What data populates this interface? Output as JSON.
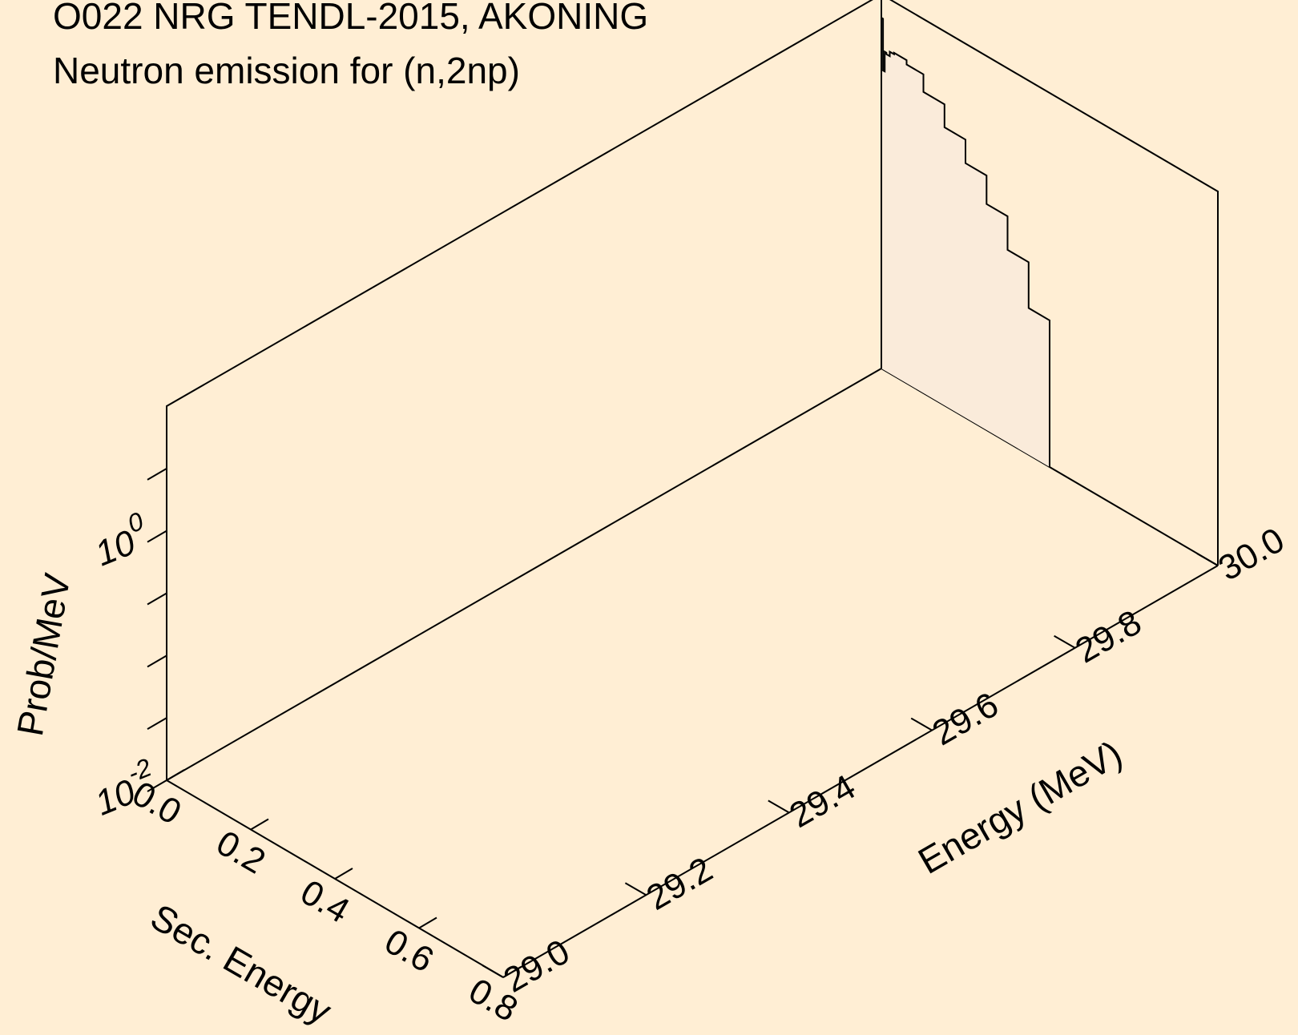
{
  "chart_data": {
    "type": "3d-surface",
    "title": [
      "O022 NRG TENDL-2015, AKONING",
      "Neutron emission for (n,2np)"
    ],
    "axes": {
      "x": {
        "label": "Sec. Energy",
        "range": [
          0.0,
          0.8
        ],
        "ticks": [
          "0.0",
          "0.2",
          "0.4",
          "0.6",
          "0.8"
        ]
      },
      "y": {
        "label": "Energy (MeV)",
        "range": [
          29.0,
          30.0
        ],
        "ticks": [
          "29.0",
          "29.2",
          "29.4",
          "29.6",
          "29.8",
          "30.0"
        ]
      },
      "z": {
        "label": "Prob/MeV",
        "scale": "log",
        "range": [
          0.01,
          10
        ],
        "ticks": [
          {
            "mantissa": "10",
            "exponent": "-2"
          },
          {
            "mantissa": "10",
            "exponent": "0"
          }
        ]
      }
    },
    "series": [
      {
        "incident_energy": 30.0,
        "secondary_energy": [
          0.0,
          0.004,
          0.008,
          0.012,
          0.02,
          0.03,
          0.06,
          0.1,
          0.15,
          0.2,
          0.25,
          0.3,
          0.35,
          0.4
        ],
        "prob_per_mev": [
          6.5,
          2.5,
          3.6,
          3.5,
          3.8,
          3.9,
          3.6,
          2.6,
          1.7,
          1.1,
          0.65,
          0.35,
          0.15,
          0.06
        ]
      }
    ],
    "colors": {
      "background": "#FFEED4",
      "surface_fill": "#FAEBDA",
      "lines": "#000000"
    }
  }
}
